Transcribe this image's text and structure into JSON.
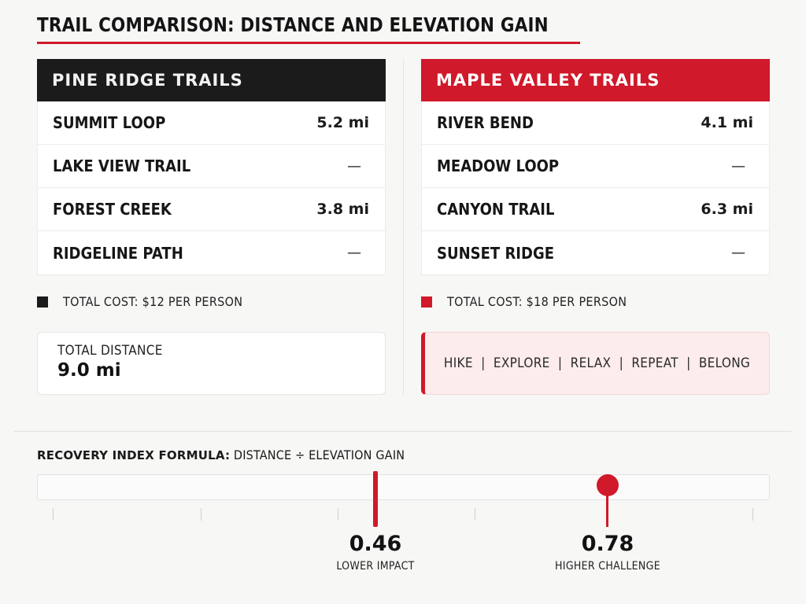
{
  "title": "TRAIL COMPARISON: DISTANCE AND ELEVATION GAIN",
  "colors": {
    "accent": "#d0192a",
    "dark": "#1b1b1b"
  },
  "pine_ridge": {
    "heading": "PINE RIDGE TRAILS",
    "trails": [
      {
        "name": "SUMMIT LOOP",
        "distance": "5.2 mi"
      },
      {
        "name": "LAKE VIEW TRAIL",
        "distance": "—"
      },
      {
        "name": "FOREST CREEK",
        "distance": "3.8 mi"
      },
      {
        "name": "RIDGELINE PATH",
        "distance": "—"
      }
    ],
    "cost": "TOTAL COST: $12 PER PERSON",
    "total_distance_label": "TOTAL DISTANCE",
    "total_distance_value": "9.0 mi"
  },
  "maple_valley": {
    "heading": "MAPLE VALLEY TRAILS",
    "trails": [
      {
        "name": "RIVER BEND",
        "distance": "4.1 mi"
      },
      {
        "name": "MEADOW LOOP",
        "distance": "—"
      },
      {
        "name": "CANYON TRAIL",
        "distance": "6.3 mi"
      },
      {
        "name": "SUNSET RIDGE",
        "distance": "—"
      }
    ],
    "cost": "TOTAL COST: $18 PER PERSON",
    "tagline": "HIKE  |  EXPLORE  |  RELAX  |  REPEAT  |  BELONG"
  },
  "formula": {
    "label": "RECOVERY INDEX FORMULA:",
    "expression": " DISTANCE ÷ ELEVATION GAIN"
  },
  "markers": [
    {
      "value": "0.46",
      "caption": "LOWER IMPACT"
    },
    {
      "value": "0.78",
      "caption": "HIGHER CHALLENGE"
    }
  ]
}
